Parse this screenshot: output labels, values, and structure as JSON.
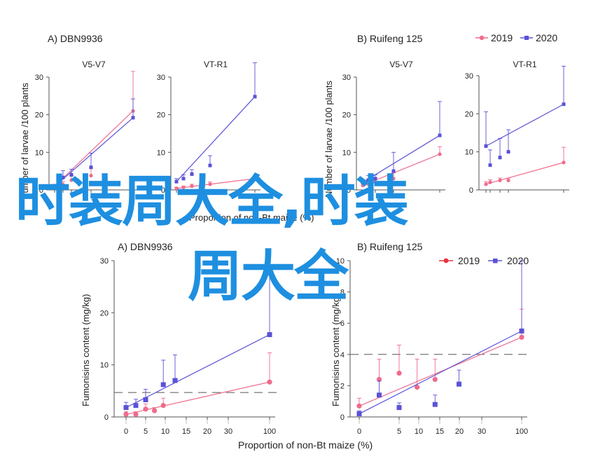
{
  "colors": {
    "series_2019": "#ef6b8b",
    "series_2020": "#5a52d6",
    "overlay": "#1e8fe0",
    "axis": "#555555"
  },
  "top_row": {
    "panel_a_title": "A)  DBN9936",
    "panel_b_title": "B)  Ruifeng 125",
    "ylabel": "Number of larvae /100 plants",
    "xlabel_fragment": "Proportion of non-Bt maize (%)",
    "legend": [
      {
        "name": "2019"
      },
      {
        "name": "2020"
      }
    ]
  },
  "bottom_row": {
    "panel_a_title": "A) DBN9936",
    "panel_b_title": "B) Ruifeng 125",
    "ylabel": "Fumonisins content (mg/kg)",
    "xlabel": "Proportion of non-Bt maize (%)",
    "legend": [
      {
        "name": "2019"
      },
      {
        "name": "2020"
      }
    ]
  },
  "overlay_text": {
    "line1": "时装周大全,时装",
    "line2": "周大全"
  },
  "chart_data": [
    {
      "type": "scatter",
      "panel": "A) DBN9936 — V5-V7",
      "title": "V5-V7",
      "xlabel": "",
      "ylabel": "Number of larvae /100 plants",
      "ylim": [
        0,
        30
      ],
      "yticks": [
        0,
        10,
        20,
        30
      ],
      "series": [
        {
          "name": "2019",
          "x": [
            0,
            2.5,
            5,
            10,
            100
          ],
          "y": [
            1.0,
            1.4,
            2.6,
            3.8,
            21.0
          ],
          "err": [
            0.5,
            0.8,
            1.2,
            2.0,
            10.5
          ]
        },
        {
          "name": "2020",
          "x": [
            0,
            2.5,
            5,
            10,
            100
          ],
          "y": [
            0.9,
            3.3,
            4.0,
            6.0,
            19.2
          ],
          "err": [
            0.6,
            1.8,
            1.5,
            3.8,
            5.0
          ]
        }
      ]
    },
    {
      "type": "scatter",
      "panel": "A) DBN9936 — VT-R1",
      "title": "VT-R1",
      "xlabel": "",
      "ylabel": "",
      "ylim": [
        0,
        30
      ],
      "yticks": [
        0,
        10,
        20,
        30
      ],
      "series": [
        {
          "name": "2019",
          "x": [
            0,
            2.5,
            5,
            10,
            100
          ],
          "y": [
            0.4,
            0.7,
            1.0,
            1.5,
            3.0
          ],
          "err": [
            0.3,
            0.3,
            0.5,
            0.6,
            0.7
          ]
        },
        {
          "name": "2020",
          "x": [
            0,
            2.5,
            5,
            10,
            100
          ],
          "y": [
            2.2,
            3.0,
            4.2,
            6.5,
            24.8
          ],
          "err": [
            0.8,
            1.0,
            1.2,
            2.6,
            9.0
          ]
        }
      ]
    },
    {
      "type": "scatter",
      "panel": "B) Ruifeng 125 — V5-V7",
      "title": "V5-V7",
      "xlabel": "",
      "ylabel": "Number of larvae /100 plants",
      "ylim": [
        0,
        30
      ],
      "yticks": [
        0,
        10,
        20,
        30
      ],
      "series": [
        {
          "name": "2019",
          "x": [
            0,
            2.5,
            5,
            10,
            100
          ],
          "y": [
            1.2,
            1.5,
            2.0,
            3.0,
            9.5
          ],
          "err": [
            0.6,
            0.8,
            1.2,
            1.5,
            2.0
          ]
        },
        {
          "name": "2020",
          "x": [
            0,
            2.5,
            5,
            10,
            100
          ],
          "y": [
            2.0,
            2.6,
            3.0,
            5.0,
            14.5
          ],
          "err": [
            0.8,
            1.2,
            1.0,
            5.0,
            9.0
          ]
        }
      ]
    },
    {
      "type": "scatter",
      "panel": "B) Ruifeng 125 — VT-R1",
      "title": "VT-R1",
      "xlabel": "",
      "ylabel": "",
      "ylim": [
        0,
        30
      ],
      "yticks": [
        0,
        10,
        20,
        30
      ],
      "series": [
        {
          "name": "2019",
          "x": [
            0,
            2.5,
            5,
            10,
            100
          ],
          "y": [
            1.5,
            2.0,
            2.5,
            2.5,
            7.2
          ],
          "err": [
            0.6,
            0.7,
            0.6,
            0.6,
            4.0
          ]
        },
        {
          "name": "2020",
          "x": [
            0,
            2.5,
            5,
            10,
            100
          ],
          "y": [
            11.5,
            6.5,
            8.5,
            10.0,
            22.5
          ],
          "err": [
            9.0,
            4.0,
            5.0,
            5.8,
            10.0
          ]
        }
      ]
    },
    {
      "type": "scatter",
      "panel": "A) DBN9936 fumonisins",
      "title": "A) DBN9936",
      "xlabel": "Proportion of non-Bt maize (%)",
      "ylabel": "Fumonisins content (mg/kg)",
      "ylim": [
        0,
        30
      ],
      "yticks": [
        0,
        10,
        20,
        30
      ],
      "xticks": [
        "0",
        "5",
        "10",
        "15",
        "20",
        "30",
        "100"
      ],
      "reference_line_y": 4.7,
      "series": [
        {
          "name": "2019",
          "x": [
            0,
            2.5,
            5,
            7.5,
            10,
            100
          ],
          "y": [
            0.5,
            0.5,
            1.5,
            1.2,
            2.2,
            6.7
          ],
          "err": [
            0.5,
            0.5,
            1.0,
            0.6,
            1.4,
            5.6
          ]
        },
        {
          "name": "2020",
          "x": [
            0,
            2.5,
            5,
            10,
            15,
            100
          ],
          "y": [
            1.8,
            2.2,
            3.3,
            6.2,
            7.0,
            15.8
          ],
          "err": [
            1.0,
            1.2,
            2.0,
            4.7,
            4.9,
            11.8
          ]
        }
      ]
    },
    {
      "type": "scatter",
      "panel": "B) Ruifeng 125 fumonisins",
      "title": "B) Ruifeng 125",
      "xlabel": "Proportion of non-Bt maize (%)",
      "ylabel": "Fumonisins content (mg/kg)",
      "ylim": [
        0,
        10
      ],
      "yticks": [
        0,
        2,
        4,
        6,
        8,
        10
      ],
      "xticks": [
        "0",
        "5",
        "10",
        "15",
        "20",
        "30",
        "100"
      ],
      "reference_line_y": 4.0,
      "series": [
        {
          "name": "2019",
          "x": [
            0,
            2.5,
            5,
            7.5,
            10,
            100
          ],
          "y": [
            0.7,
            2.4,
            2.8,
            1.9,
            2.4,
            5.1
          ],
          "err": [
            0.5,
            1.3,
            1.8,
            1.8,
            1.3,
            1.8
          ]
        },
        {
          "name": "2020",
          "x": [
            0,
            2.5,
            5,
            10,
            15,
            100
          ],
          "y": [
            0.2,
            1.4,
            0.6,
            0.8,
            2.1,
            5.5
          ],
          "err": [
            0.2,
            0.9,
            0.3,
            0.6,
            0.9,
            4.5
          ]
        }
      ]
    }
  ]
}
